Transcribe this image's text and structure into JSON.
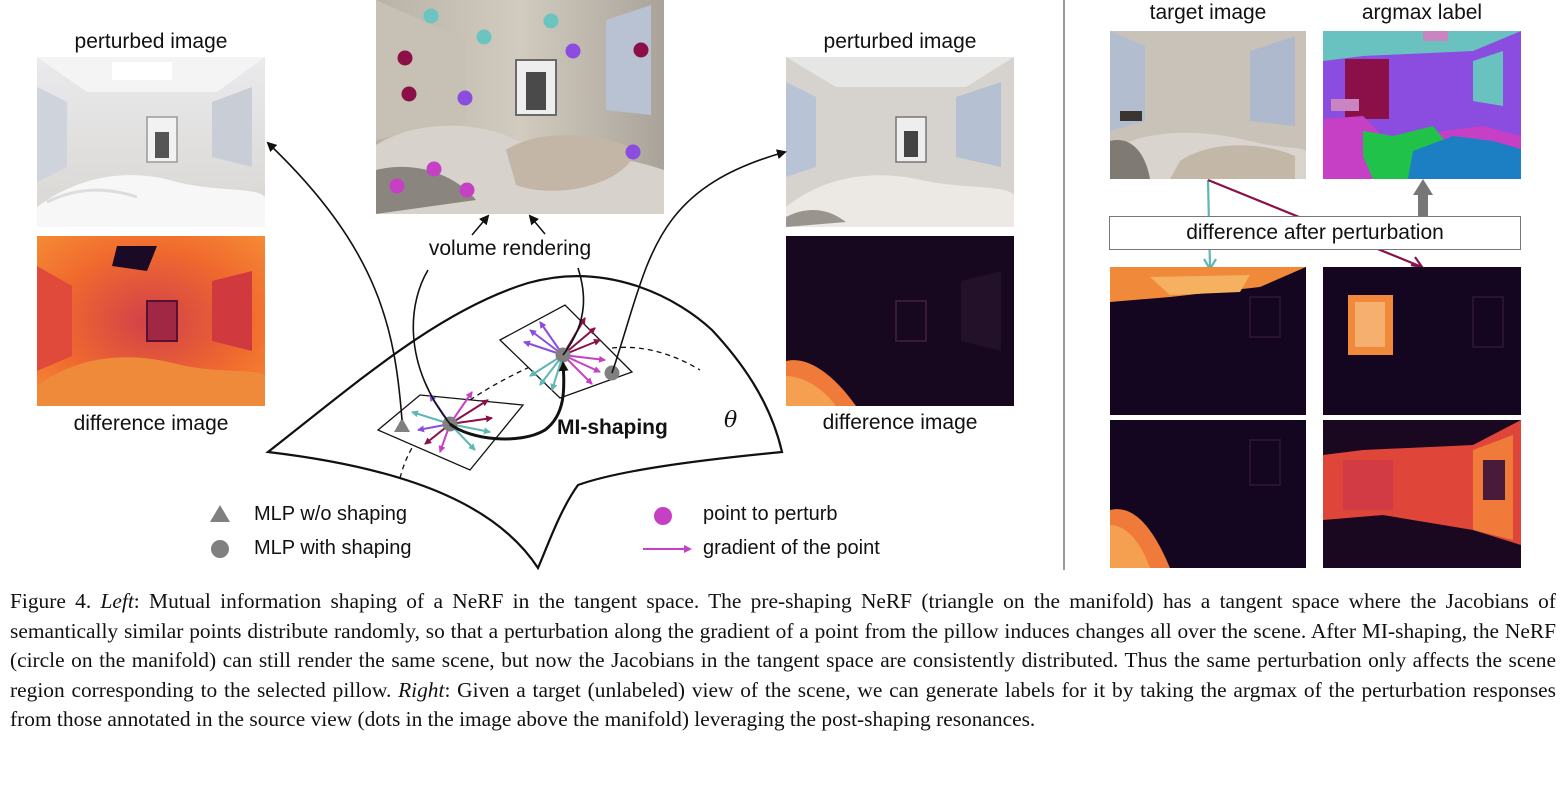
{
  "labels": {
    "perturbed_left": "perturbed image",
    "difference_left": "difference image",
    "perturbed_right": "perturbed image",
    "difference_right": "difference image",
    "volume_rendering": "volume rendering",
    "mi_shaping": "MI-shaping",
    "theta": "θ",
    "target_image": "target image",
    "argmax_label": "argmax label",
    "difference_after": "difference after perturbation"
  },
  "legend": {
    "mlp_without": "MLP w/o shaping",
    "mlp_with": "MLP with shaping",
    "point": "point to perturb",
    "gradient": "gradient of the point"
  },
  "caption": {
    "figure_number": "Figure 4.",
    "left_label": "Left",
    "left_text": ": Mutual information shaping of a NeRF in the tangent space. The pre-shaping NeRF (triangle on the manifold) has a tangent space where the Jacobians of semantically similar points distribute randomly, so that a perturbation along the gradient of a point from the pillow induces changes all over the scene. After MI-shaping, the NeRF (circle on the manifold) can still render the same scene, but now the Jacobians in the tangent space are consistently distributed. Thus the same perturbation only affects the scene region corresponding to the selected pillow. ",
    "right_label": "Right",
    "right_text": ": Given a target (unlabeled) view of the scene, we can generate labels for it by taking the argmax of the perturbation responses from those annotated in the source view (dots in the image above the manifold) leveraging the post-shaping resonances."
  },
  "colors": {
    "teal": "#6cc4c0",
    "maroon": "#8b1048",
    "purple": "#8a4de0",
    "magenta": "#c640c6",
    "gray_marker": "#808080",
    "arrow_teal": "#5fb7b3",
    "arrow_maroon": "#8b1048"
  }
}
